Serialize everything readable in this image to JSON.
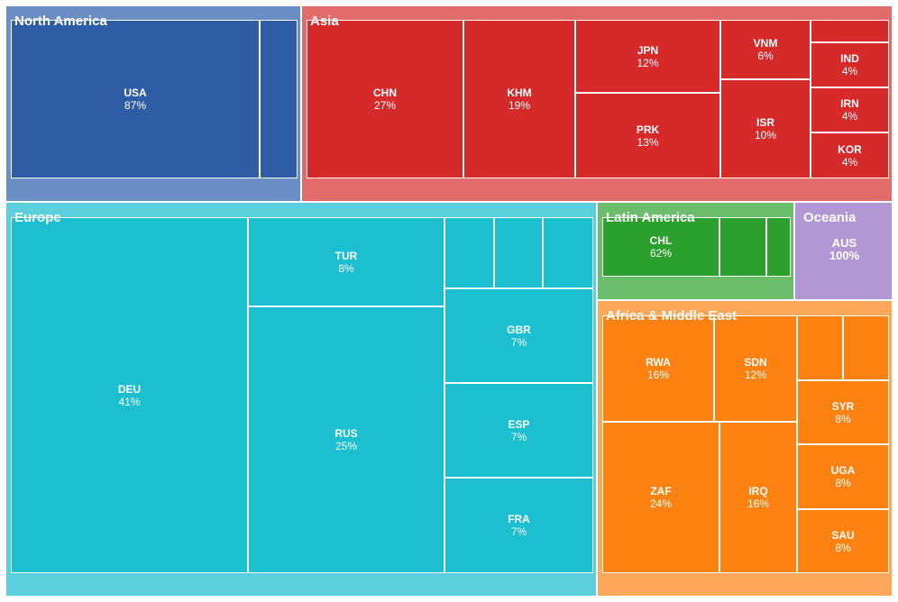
{
  "chart_data": {
    "type": "treemap",
    "title": "",
    "regions": [
      {
        "name": "North America",
        "colors": {
          "bg": "#6b8fc4",
          "cell": "#2e5da6"
        },
        "cells": [
          {
            "code": "USA",
            "pct": "87%"
          },
          {
            "code": "",
            "pct": ""
          }
        ]
      },
      {
        "name": "Asia",
        "colors": {
          "bg": "#e26b6b",
          "cell": "#d62a2a"
        },
        "cells": [
          {
            "code": "CHN",
            "pct": "27%"
          },
          {
            "code": "KHM",
            "pct": "19%"
          },
          {
            "code": "JPN",
            "pct": "12%"
          },
          {
            "code": "PRK",
            "pct": "13%"
          },
          {
            "code": "VNM",
            "pct": "6%"
          },
          {
            "code": "ISR",
            "pct": "10%"
          },
          {
            "code": "",
            "pct": ""
          },
          {
            "code": "IND",
            "pct": "4%"
          },
          {
            "code": "IRN",
            "pct": "4%"
          },
          {
            "code": "KOR",
            "pct": "4%"
          }
        ]
      },
      {
        "name": "Europe",
        "colors": {
          "bg": "#5ccfdc",
          "cell": "#1bbfcf"
        },
        "cells": [
          {
            "code": "DEU",
            "pct": "41%"
          },
          {
            "code": "TUR",
            "pct": "8%"
          },
          {
            "code": "RUS",
            "pct": "25%"
          },
          {
            "code": "",
            "pct": ""
          },
          {
            "code": "",
            "pct": ""
          },
          {
            "code": "",
            "pct": ""
          },
          {
            "code": "GBR",
            "pct": "7%"
          },
          {
            "code": "ESP",
            "pct": "7%"
          },
          {
            "code": "FRA",
            "pct": "7%"
          }
        ]
      },
      {
        "name": "Latin America",
        "colors": {
          "bg": "#6cbd6c",
          "cell": "#2ca02c"
        },
        "cells": [
          {
            "code": "CHL",
            "pct": "62%"
          },
          {
            "code": "",
            "pct": ""
          },
          {
            "code": "",
            "pct": ""
          }
        ]
      },
      {
        "name": "Oceania",
        "colors": {
          "bg": "#b197d3",
          "cell": "#b197d3"
        },
        "cells": [
          {
            "code": "AUS",
            "pct": "100%"
          }
        ]
      },
      {
        "name": "Africa & Middle East",
        "colors": {
          "bg": "#fea85b",
          "cell": "#fe8212"
        },
        "cells": [
          {
            "code": "RWA",
            "pct": "16%"
          },
          {
            "code": "SDN",
            "pct": "12%"
          },
          {
            "code": "",
            "pct": ""
          },
          {
            "code": "",
            "pct": ""
          },
          {
            "code": "SYR",
            "pct": "8%"
          },
          {
            "code": "ZAF",
            "pct": "24%"
          },
          {
            "code": "IRQ",
            "pct": "16%"
          },
          {
            "code": "UGA",
            "pct": "8%"
          },
          {
            "code": "SAU",
            "pct": "8%"
          }
        ]
      }
    ]
  }
}
